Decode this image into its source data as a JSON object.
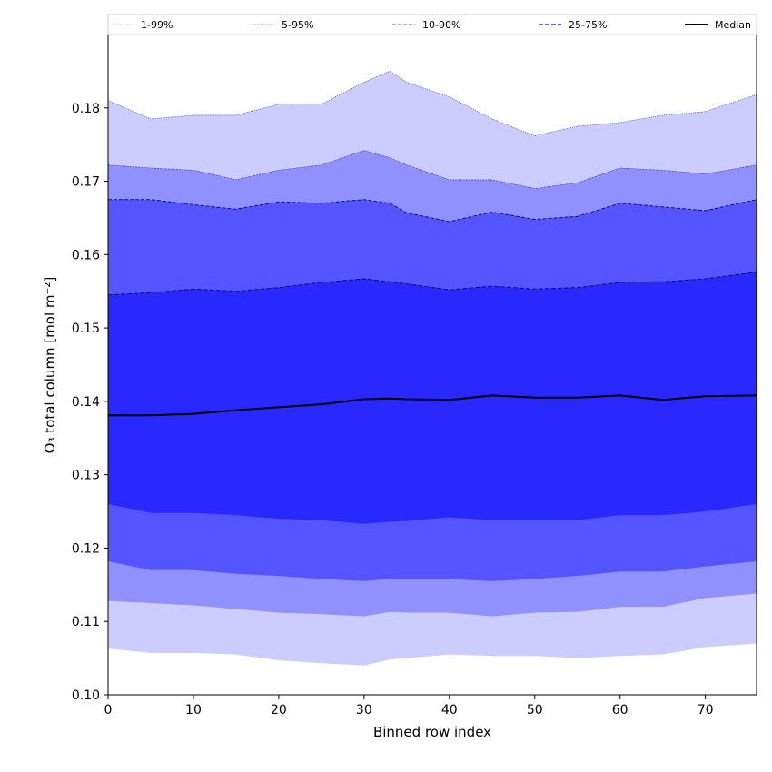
{
  "chart_data": {
    "type": "area",
    "xlabel": "Binned row index",
    "ylabel": "O₃ total column [mol m⁻²]",
    "xlim": [
      0,
      76
    ],
    "ylim": [
      0.1,
      0.19
    ],
    "xticks": [
      "0",
      "10",
      "20",
      "30",
      "40",
      "50",
      "60",
      "70"
    ],
    "yticks": [
      "0.10",
      "0.11",
      "0.12",
      "0.13",
      "0.14",
      "0.15",
      "0.16",
      "0.17",
      "0.18"
    ],
    "x": [
      0,
      5,
      10,
      15,
      20,
      25,
      30,
      33,
      35,
      40,
      45,
      50,
      55,
      60,
      65,
      70,
      76
    ],
    "legend": {
      "placement": "top",
      "entries": [
        "1-99%",
        "5-95%",
        "10-90%",
        "25-75%",
        "Median"
      ]
    },
    "bands": [
      {
        "name": "1-99%",
        "color": "#ccccff",
        "upper": [
          0.181,
          0.1785,
          0.179,
          0.179,
          0.1805,
          0.1805,
          0.1835,
          0.185,
          0.1835,
          0.1815,
          0.1785,
          0.1762,
          0.1775,
          0.178,
          0.179,
          0.1795,
          0.1818
        ],
        "lower": [
          0.1063,
          0.1057,
          0.1057,
          0.1055,
          0.1047,
          0.1043,
          0.104,
          0.1048,
          0.105,
          0.1055,
          0.1053,
          0.1053,
          0.105,
          0.1053,
          0.1055,
          0.1065,
          0.107
        ]
      },
      {
        "name": "5-95%",
        "color": "#9090ff",
        "upper": [
          0.1722,
          0.1718,
          0.1715,
          0.1702,
          0.1715,
          0.1722,
          0.1742,
          0.1732,
          0.1722,
          0.1702,
          0.1702,
          0.169,
          0.1698,
          0.1718,
          0.1715,
          0.171,
          0.1722
        ],
        "lower": [
          0.1128,
          0.1125,
          0.1122,
          0.1117,
          0.1112,
          0.111,
          0.1107,
          0.1113,
          0.1112,
          0.1112,
          0.1107,
          0.1112,
          0.1113,
          0.112,
          0.112,
          0.1132,
          0.1138
        ]
      },
      {
        "name": "10-90%",
        "color": "#5555ff",
        "upper": [
          0.1675,
          0.1675,
          0.1668,
          0.1662,
          0.1672,
          0.167,
          0.1675,
          0.167,
          0.1657,
          0.1645,
          0.1658,
          0.1648,
          0.1652,
          0.167,
          0.1665,
          0.166,
          0.1675
        ],
        "lower": [
          0.1182,
          0.117,
          0.117,
          0.1165,
          0.1162,
          0.1158,
          0.1155,
          0.1158,
          0.1158,
          0.1158,
          0.1155,
          0.1158,
          0.1162,
          0.1168,
          0.1168,
          0.1175,
          0.1182
        ]
      },
      {
        "name": "25-75%",
        "color": "#2828ff",
        "upper": [
          0.1545,
          0.1548,
          0.1553,
          0.155,
          0.1555,
          0.1562,
          0.1567,
          0.1563,
          0.156,
          0.1552,
          0.1557,
          0.1553,
          0.1555,
          0.1562,
          0.1563,
          0.1567,
          0.1576
        ],
        "lower": [
          0.126,
          0.1248,
          0.1248,
          0.1245,
          0.124,
          0.1238,
          0.1233,
          0.1236,
          0.1237,
          0.1242,
          0.1238,
          0.1238,
          0.1238,
          0.1245,
          0.1245,
          0.125,
          0.126
        ]
      }
    ],
    "median": {
      "name": "Median",
      "color": "#000000",
      "values": [
        0.1381,
        0.1381,
        0.1383,
        0.1388,
        0.1392,
        0.1396,
        0.1403,
        0.1404,
        0.1403,
        0.1402,
        0.1408,
        0.1405,
        0.1405,
        0.1408,
        0.1402,
        0.1407,
        0.1408
      ]
    }
  }
}
